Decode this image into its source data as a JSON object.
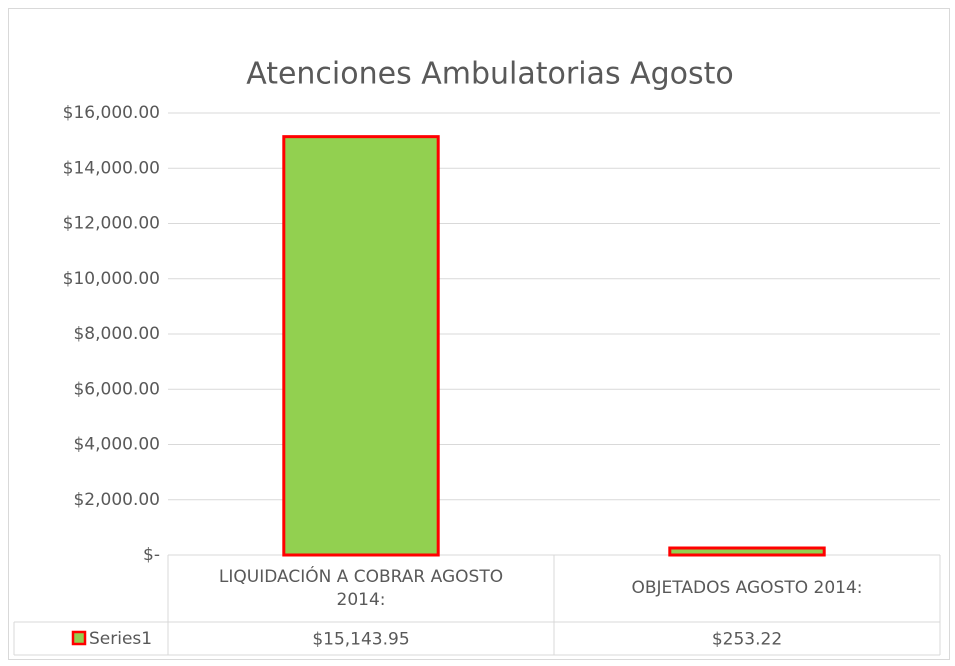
{
  "chart_data": {
    "type": "bar",
    "title": "Atenciones Ambulatorias Agosto",
    "categories": [
      "LIQUIDACIÓN A COBRAR AGOSTO 2014:",
      "OBJETADOS AGOSTO 2014:"
    ],
    "series": [
      {
        "name": "Series1",
        "color": "#92d050",
        "edgecolor": "#ff0000",
        "values": [
          15143.95,
          253.22
        ],
        "value_labels": [
          "$15,143.95",
          "$253.22"
        ]
      }
    ],
    "ylim": [
      0,
      16000
    ],
    "yticks": [
      {
        "value": 0,
        "label": "$-"
      },
      {
        "value": 2000,
        "label": "$2,000.00"
      },
      {
        "value": 4000,
        "label": "$4,000.00"
      },
      {
        "value": 6000,
        "label": "$6,000.00"
      },
      {
        "value": 8000,
        "label": "$8,000.00"
      },
      {
        "value": 10000,
        "label": "$10,000.00"
      },
      {
        "value": 12000,
        "label": "$12,000.00"
      },
      {
        "value": 14000,
        "label": "$14,000.00"
      },
      {
        "value": 16000,
        "label": "$16,000.00"
      }
    ],
    "grid": true,
    "data_table": true
  }
}
